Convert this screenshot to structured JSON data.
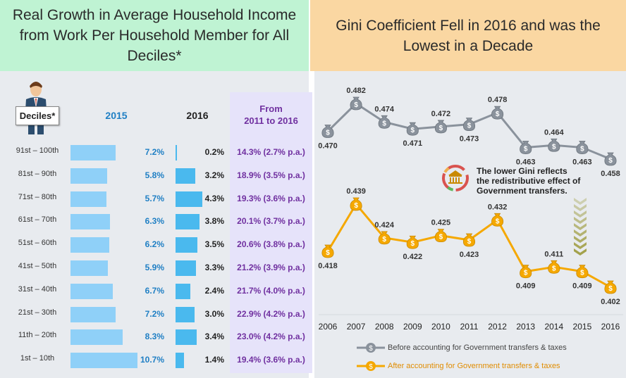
{
  "left": {
    "title": "Real Growth in Average Household Income from Work Per Household Member for All Deciles*",
    "deciles_label": "Deciles*",
    "col_2015": "2015",
    "col_2016": "2016",
    "col_from_line1": "From",
    "col_from_line2": "2011 to 2016",
    "rows": [
      {
        "decile": "91st – 100th",
        "v2015": "7.2%",
        "v2016": "0.2%",
        "from": "14.3% (2.7% p.a.)"
      },
      {
        "decile": "81st – 90th",
        "v2015": "5.8%",
        "v2016": "3.2%",
        "from": "18.9% (3.5% p.a.)"
      },
      {
        "decile": "71st – 80th",
        "v2015": "5.7%",
        "v2016": "4.3%",
        "from": "19.3% (3.6% p.a.)"
      },
      {
        "decile": "61st – 70th",
        "v2015": "6.3%",
        "v2016": "3.8%",
        "from": "20.1% (3.7% p.a.)"
      },
      {
        "decile": "51st – 60th",
        "v2015": "6.2%",
        "v2016": "3.5%",
        "from": "20.6% (3.8% p.a.)"
      },
      {
        "decile": "41st – 50th",
        "v2015": "5.9%",
        "v2016": "3.3%",
        "from": "21.2% (3.9% p.a.)"
      },
      {
        "decile": "31st – 40th",
        "v2015": "6.7%",
        "v2016": "2.4%",
        "from": "21.7% (4.0% p.a.)"
      },
      {
        "decile": "21st – 30th",
        "v2015": "7.2%",
        "v2016": "3.0%",
        "from": "22.9% (4.2% p.a.)"
      },
      {
        "decile": "11th – 20th",
        "v2015": "8.3%",
        "v2016": "3.4%",
        "from": "23.0% (4.2% p.a.)"
      },
      {
        "decile": "1st – 10th",
        "v2015": "10.7%",
        "v2016": "1.4%",
        "from": "19.4% (3.6% p.a.)"
      }
    ]
  },
  "right": {
    "title": "Gini Coefficient Fell in 2016 and was the Lowest in a Decade",
    "note": "The lower Gini reflects the redistributive effect of Government transfers.",
    "legend_before": "Before accounting for Government transfers & taxes",
    "legend_after": "After accounting for Government transfers & taxes"
  },
  "colors": {
    "left_header_bg": "#bff3d3",
    "right_header_bg": "#fad7a2",
    "bar_2015": "#8fd0f8",
    "bar_2016": "#4ab9ee",
    "label_2015": "#1f7fc4",
    "from_text": "#7030a0",
    "before_line": "#8a929c",
    "after_line": "#f5a800",
    "after_legend_text": "#e08c00"
  },
  "chart_data": [
    {
      "type": "bar",
      "title": "Real Growth in Average Household Income from Work Per Household Member for All Deciles*",
      "categories": [
        "91st – 100th",
        "81st – 90th",
        "71st – 80th",
        "61st – 70th",
        "51st – 60th",
        "41st – 50th",
        "31st – 40th",
        "21st – 30th",
        "11th – 20th",
        "1st – 10th"
      ],
      "series": [
        {
          "name": "2015",
          "values": [
            7.2,
            5.8,
            5.7,
            6.3,
            6.2,
            5.9,
            6.7,
            7.2,
            8.3,
            10.7
          ]
        },
        {
          "name": "2016",
          "values": [
            0.2,
            3.2,
            4.3,
            3.8,
            3.5,
            3.3,
            2.4,
            3.0,
            3.4,
            1.4
          ]
        }
      ],
      "orientation": "horizontal"
    },
    {
      "type": "line",
      "title": "Gini Coefficient Fell in 2016 and was the Lowest in a Decade",
      "x": [
        "2006",
        "2007",
        "2008",
        "2009",
        "2010",
        "2011",
        "2012",
        "2013",
        "2014",
        "2015",
        "2016"
      ],
      "series": [
        {
          "name": "Before accounting for Government transfers & taxes",
          "values": [
            0.47,
            0.482,
            0.474,
            0.471,
            0.472,
            0.473,
            0.478,
            0.463,
            0.464,
            0.463,
            0.458
          ]
        },
        {
          "name": "After accounting for Government transfers & taxes",
          "values": [
            0.418,
            0.439,
            0.424,
            0.422,
            0.425,
            0.423,
            0.432,
            0.409,
            0.411,
            0.409,
            0.402
          ]
        }
      ],
      "legend_position": "bottom"
    }
  ]
}
